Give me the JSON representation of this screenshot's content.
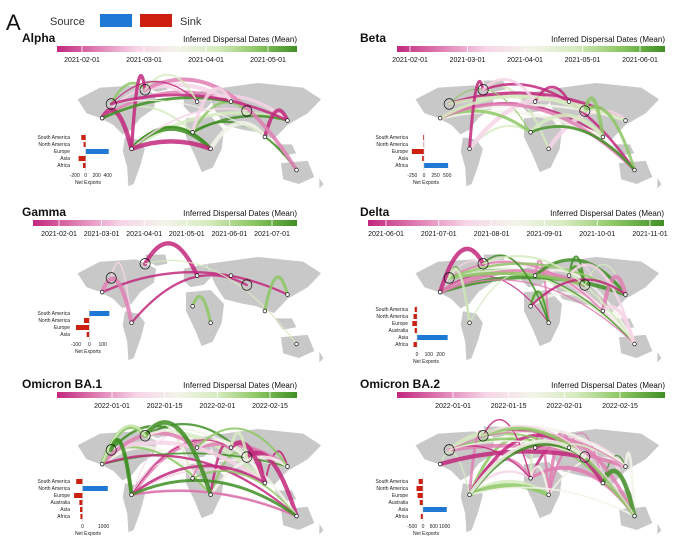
{
  "figure": {
    "panel_letter": "A",
    "legend": {
      "source_label": "Source",
      "sink_label": "Sink",
      "source_color": "#1f78d4",
      "sink_color": "#cc1f10"
    }
  },
  "colors": {
    "scale": [
      "#c2287e",
      "#e07fb4",
      "#f7d5e7",
      "#f3f4ea",
      "#d6ebbf",
      "#8dc764",
      "#3f8f24"
    ],
    "land": "#c8c8c8",
    "border": "#ffffff"
  },
  "chart_data": [
    {
      "type": "map",
      "title": "Alpha",
      "colorbar_title": "Inferred Dispersal Dates (Mean)",
      "colorbar_ticks": [
        "2021-02-01",
        "2021-03-01",
        "2021-04-01",
        "2021-05-01"
      ],
      "inset": {
        "type": "bar",
        "title": "Net Exports",
        "categories": [
          "South America",
          "North America",
          "Europe",
          "Asia",
          "Africa"
        ],
        "values": [
          -80,
          -40,
          420,
          -130,
          -50
        ],
        "xticks": [
          "-200",
          "0",
          "200",
          "400"
        ],
        "xlim": [
          -250,
          480
        ]
      }
    },
    {
      "type": "map",
      "title": "Beta",
      "colorbar_title": "Inferred Dispersal Dates (Mean)",
      "colorbar_ticks": [
        "2021-02-01",
        "2021-03-01",
        "2021-04-01",
        "2021-05-01",
        "2021-06-01"
      ],
      "inset": {
        "type": "bar",
        "title": "Net Exports",
        "categories": [
          "South America",
          "North America",
          "Europe",
          "Asia",
          "Africa"
        ],
        "values": [
          -20,
          -10,
          -260,
          -40,
          520
        ],
        "xticks": [
          "-250",
          "0",
          "250",
          "500"
        ],
        "xlim": [
          -300,
          560
        ]
      }
    },
    {
      "type": "map",
      "title": "Gamma",
      "colorbar_title": "Inferred Dispersal Dates (Mean)",
      "colorbar_ticks": [
        "2021-02-01",
        "2021-03-01",
        "2021-04-01",
        "2021-05-01",
        "2021-06-01",
        "2021-07-01"
      ],
      "inset": {
        "type": "bar",
        "title": "Net Exports",
        "categories": [
          "South America",
          "North America",
          "Europe",
          "Asia"
        ],
        "values": [
          150,
          -40,
          -100,
          -20
        ],
        "xticks": [
          "-100",
          "0",
          "100"
        ],
        "xlim": [
          -130,
          170
        ]
      }
    },
    {
      "type": "map",
      "title": "Delta",
      "colorbar_title": "Inferred Dispersal Dates (Mean)",
      "colorbar_ticks": [
        "2021-06-01",
        "2021-07-01",
        "2021-08-01",
        "2021-09-01",
        "2021-10-01",
        "2021-11-01"
      ],
      "inset": {
        "type": "bar",
        "title": "Net Exports",
        "categories": [
          "South America",
          "North America",
          "Europe",
          "Australia",
          "Asia",
          "Africa"
        ],
        "values": [
          -20,
          -30,
          -40,
          -20,
          260,
          -30
        ],
        "xticks": [
          "0",
          "100",
          "200"
        ],
        "xlim": [
          -60,
          280
        ]
      }
    },
    {
      "type": "map",
      "title": "Omicron BA.1",
      "colorbar_title": "Inferred Dispersal Dates (Mean)",
      "colorbar_ticks": [
        "2022-01-01",
        "2022-01-15",
        "2022-02-01",
        "2022-02-15"
      ],
      "inset": {
        "type": "bar",
        "title": "Net Exports",
        "categories": [
          "South America",
          "North America",
          "Europe",
          "Australia",
          "Asia",
          "Africa"
        ],
        "values": [
          -300,
          1200,
          -400,
          -150,
          -120,
          -100
        ],
        "xticks": [
          "0",
          "1000"
        ],
        "xlim": [
          -500,
          1400
        ]
      }
    },
    {
      "type": "map",
      "title": "Omicron BA.2",
      "colorbar_title": "Inferred Dispersal Dates (Mean)",
      "colorbar_ticks": [
        "2022-01-01",
        "2022-01-15",
        "2022-02-01",
        "2022-02-15"
      ],
      "inset": {
        "type": "bar",
        "title": "Net Exports",
        "categories": [
          "South America",
          "North America",
          "Europe",
          "Australia",
          "Asia",
          "Africa"
        ],
        "values": [
          -200,
          -300,
          -250,
          -150,
          1100,
          -100
        ],
        "xticks": [
          "-500",
          "0",
          "500",
          "1000"
        ],
        "xlim": [
          -600,
          1250
        ]
      }
    }
  ]
}
